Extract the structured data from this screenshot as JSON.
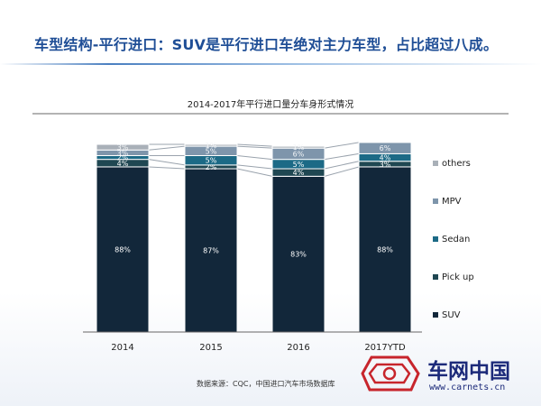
{
  "page": {
    "title": "车型结构-平行进口：SUV是平行进口车绝对主力车型，占比超过八成。",
    "source": "数据来源：CQC，中国进口汽车市场数据库"
  },
  "watermark": {
    "name": "车网中国",
    "url": "www.carnets.cn"
  },
  "chart_data": {
    "type": "bar",
    "stacked": true,
    "percent": true,
    "title": "2014-2017年平行进口量分车身形式情况",
    "categories": [
      "2014",
      "2015",
      "2016",
      "2017YTD"
    ],
    "series": [
      {
        "name": "SUV",
        "values": [
          88,
          87,
          83,
          88
        ],
        "color": "#12273a"
      },
      {
        "name": "Pick up",
        "values": [
          4,
          2,
          4,
          3
        ],
        "color": "#1f4752"
      },
      {
        "name": "Sedan",
        "values": [
          2,
          5,
          5,
          4
        ],
        "color": "#1c6a86"
      },
      {
        "name": "MPV",
        "values": [
          3,
          5,
          6,
          6
        ],
        "color": "#7e95ab"
      },
      {
        "name": "others",
        "values": [
          3,
          1,
          1,
          null
        ],
        "color": "#a9b0b8"
      }
    ],
    "xlabel": "",
    "ylabel": "",
    "ylim": [
      0,
      100
    ],
    "grid": false,
    "legend": "right",
    "connector_lines": true
  }
}
